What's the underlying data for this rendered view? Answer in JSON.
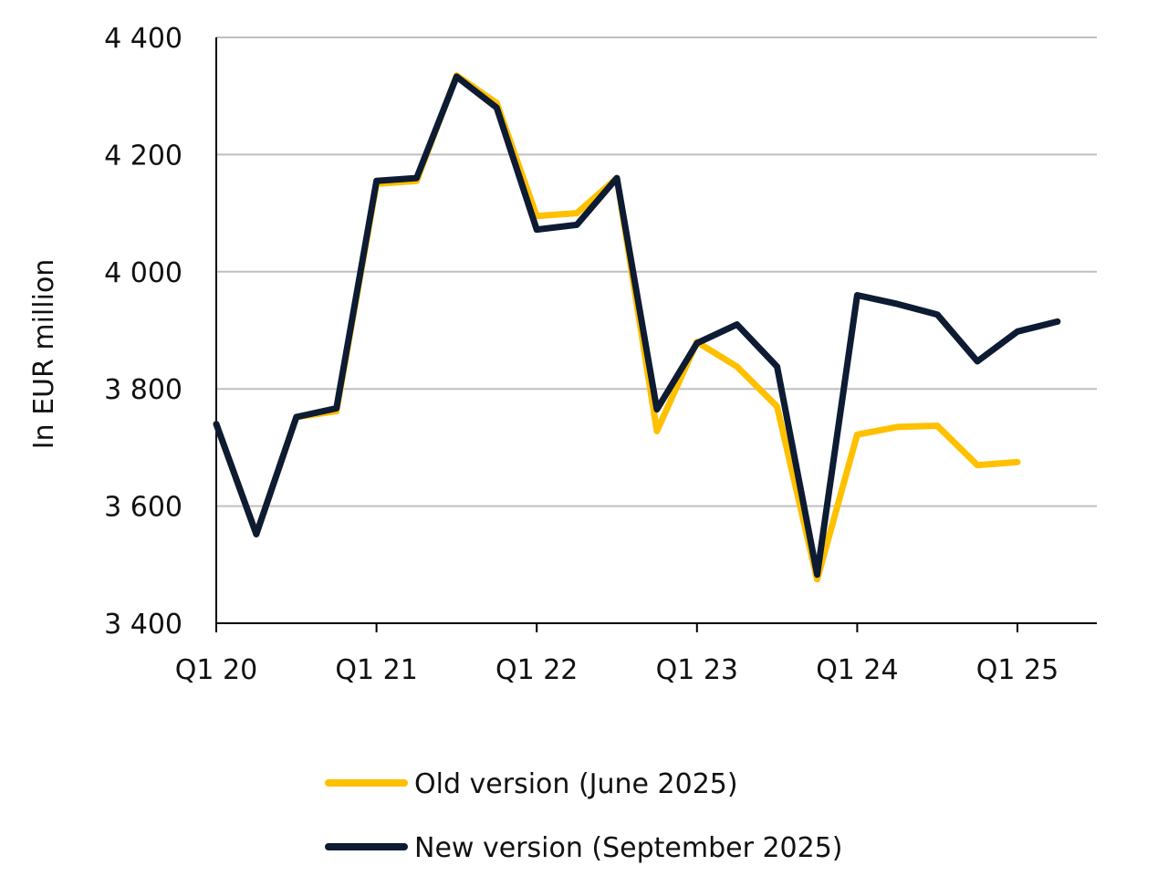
{
  "chart_data": {
    "type": "line",
    "ylabel": "In EUR million",
    "ylim": [
      3400,
      4400
    ],
    "yticks": [
      3400,
      3600,
      3800,
      4000,
      4200,
      4400
    ],
    "ytick_labels": [
      "3 400",
      "3 600",
      "3 800",
      "4 000",
      "4 200",
      "4 400"
    ],
    "x_categories": [
      "Q1 20",
      "Q2 20",
      "Q3 20",
      "Q4 20",
      "Q1 21",
      "Q2 21",
      "Q3 21",
      "Q4 21",
      "Q1 22",
      "Q2 22",
      "Q3 22",
      "Q4 22",
      "Q1 23",
      "Q2 23",
      "Q3 23",
      "Q4 23",
      "Q1 24",
      "Q2 24",
      "Q3 24",
      "Q4 24",
      "Q1 25",
      "Q2 25"
    ],
    "xtick_labels": [
      "Q1 20",
      "Q1 21",
      "Q1 22",
      "Q1 23",
      "Q1 24",
      "Q1 25"
    ],
    "xtick_positions": [
      0,
      4,
      8,
      12,
      16,
      20
    ],
    "grid": true,
    "legend_position": "bottom",
    "series": [
      {
        "name": "Old version (June 2025)",
        "color": "#ffc000",
        "values": [
          3740,
          3552,
          3752,
          3762,
          4150,
          4155,
          4335,
          4288,
          4095,
          4100,
          4160,
          3728,
          3880,
          3838,
          3770,
          3475,
          3722,
          3735,
          3737,
          3670,
          3675,
          null
        ]
      },
      {
        "name": "New version (September 2025)",
        "color": "#0d1b33",
        "values": [
          3740,
          3552,
          3752,
          3767,
          4155,
          4160,
          4333,
          4280,
          4072,
          4080,
          4160,
          3765,
          3878,
          3910,
          3838,
          3483,
          3960,
          3945,
          3927,
          3847,
          3898,
          3915
        ]
      }
    ]
  }
}
